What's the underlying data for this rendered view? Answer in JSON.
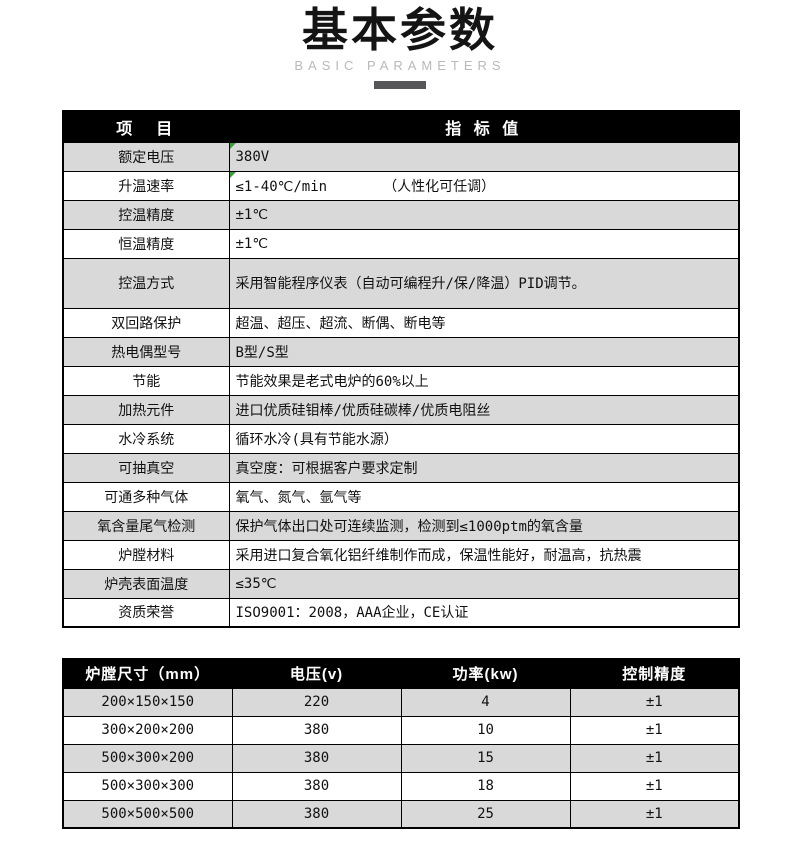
{
  "page": {
    "title": "基本参数",
    "subtitle": "BASIC PARAMETERS"
  },
  "colors": {
    "header_bg": "#000000",
    "row_gray": "#d9d9d9",
    "underline_bar": "#57575a",
    "marker_green": "#3a9e3a"
  },
  "spec_table": {
    "headers": {
      "item": "项　目",
      "value": "指 标 值"
    },
    "rows": [
      {
        "label": "额定电压",
        "value": "380V",
        "note": "",
        "marker": true,
        "tall": false
      },
      {
        "label": "升温速率",
        "value": "≤1-40℃/min",
        "note": "（人性化可任调）",
        "marker": true,
        "tall": false
      },
      {
        "label": "控温精度",
        "value": "±1℃",
        "note": "",
        "marker": false,
        "tall": false
      },
      {
        "label": "恒温精度",
        "value": "±1℃",
        "note": "",
        "marker": false,
        "tall": false
      },
      {
        "label": "控温方式",
        "value": "采用智能程序仪表（自动可编程升/保/降温）PID调节。",
        "note": "",
        "marker": false,
        "tall": true
      },
      {
        "label": "双回路保护",
        "value": "超温、超压、超流、断偶、断电等",
        "note": "",
        "marker": false,
        "tall": false
      },
      {
        "label": "热电偶型号",
        "value": "B型/S型",
        "note": "",
        "marker": false,
        "tall": false
      },
      {
        "label": "节能",
        "value": "节能效果是老式电炉的60%以上",
        "note": "",
        "marker": false,
        "tall": false
      },
      {
        "label": "加热元件",
        "value": "进口优质硅钼棒/优质硅碳棒/优质电阻丝",
        "note": "",
        "marker": false,
        "tall": false
      },
      {
        "label": "水冷系统",
        "value": "循环水冷(具有节能水源）",
        "note": "",
        "marker": false,
        "tall": false
      },
      {
        "label": "可抽真空",
        "value": "真空度：可根据客户要求定制",
        "note": "",
        "marker": false,
        "tall": false
      },
      {
        "label": "可通多种气体",
        "value": "氧气、氮气、氩气等",
        "note": "",
        "marker": false,
        "tall": false
      },
      {
        "label": "氧含量尾气检测",
        "value": "保护气体出口处可连续监测，检测到≤1000ptm的氧含量",
        "note": "",
        "marker": false,
        "tall": false
      },
      {
        "label": "炉膛材料",
        "value": "采用进口复合氧化铝纤维制作而成，保温性能好，耐温高，抗热震",
        "note": "",
        "marker": false,
        "tall": false
      },
      {
        "label": "炉壳表面温度",
        "value": "≤35℃",
        "note": "",
        "marker": false,
        "tall": false
      },
      {
        "label": "资质荣誉",
        "value": "ISO9001：2008，AAA企业，CE认证",
        "note": "",
        "marker": false,
        "tall": false
      }
    ]
  },
  "size_table": {
    "headers": [
      "炉膛尺寸（mm）",
      "电压(v)",
      "功率(kw)",
      "控制精度"
    ],
    "rows": [
      [
        "200×150×150",
        "220",
        "4",
        "±1"
      ],
      [
        "300×200×200",
        "380",
        "10",
        "±1"
      ],
      [
        "500×300×200",
        "380",
        "15",
        "±1"
      ],
      [
        "500×300×300",
        "380",
        "18",
        "±1"
      ],
      [
        "500×500×500",
        "380",
        "25",
        "±1"
      ]
    ]
  }
}
